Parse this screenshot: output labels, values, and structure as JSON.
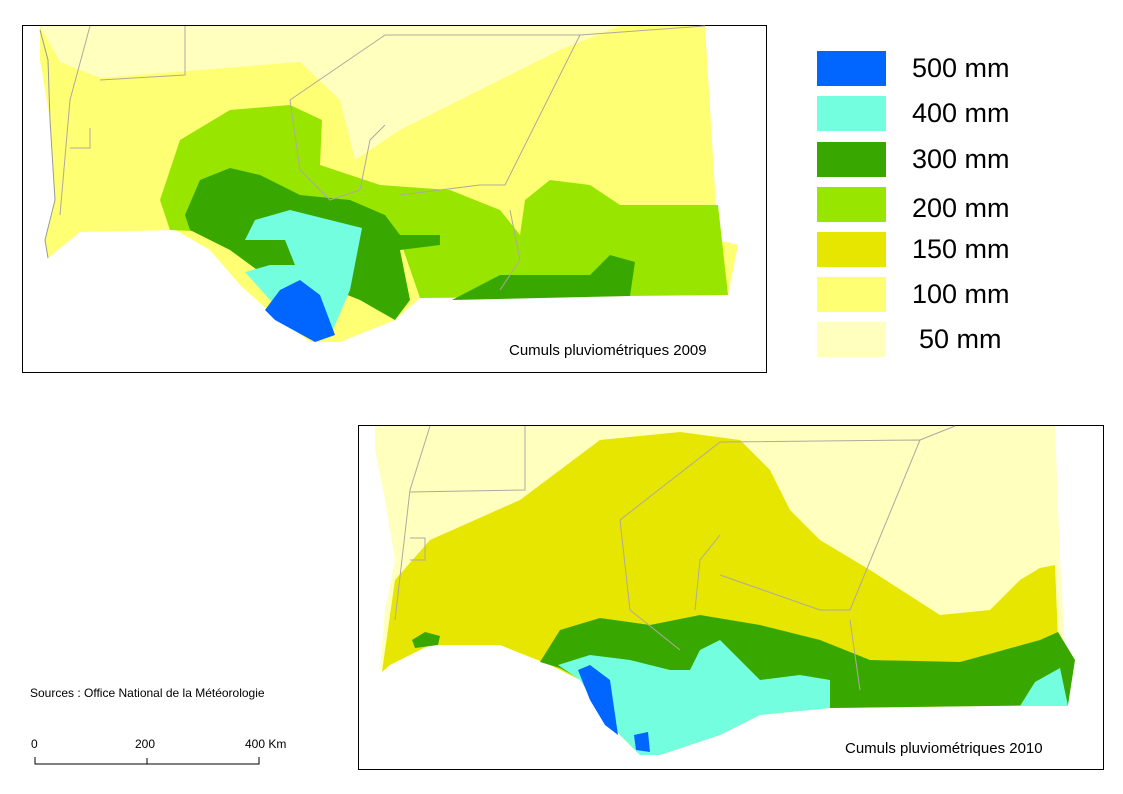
{
  "maps": [
    {
      "title": "Cumuls pluviométriques 2009"
    },
    {
      "title": "Cumuls pluviométriques 2010"
    }
  ],
  "legend": [
    {
      "label": "500 mm",
      "color": "#0066ff"
    },
    {
      "label": "400 mm",
      "color": "#73ffdf"
    },
    {
      "label": "300 mm",
      "color": "#38a800"
    },
    {
      "label": "200 mm",
      "color": "#98e600"
    },
    {
      "label": "150 mm",
      "color": "#e6e600"
    },
    {
      "label": "100 mm",
      "color": "#ffff73"
    },
    {
      "label": " 50 mm",
      "color": "#ffffbe"
    }
  ],
  "sources": "Sources : Office National de la Météorologie",
  "scale_bar": {
    "labels": [
      "0",
      "200",
      "400 Km"
    ]
  }
}
